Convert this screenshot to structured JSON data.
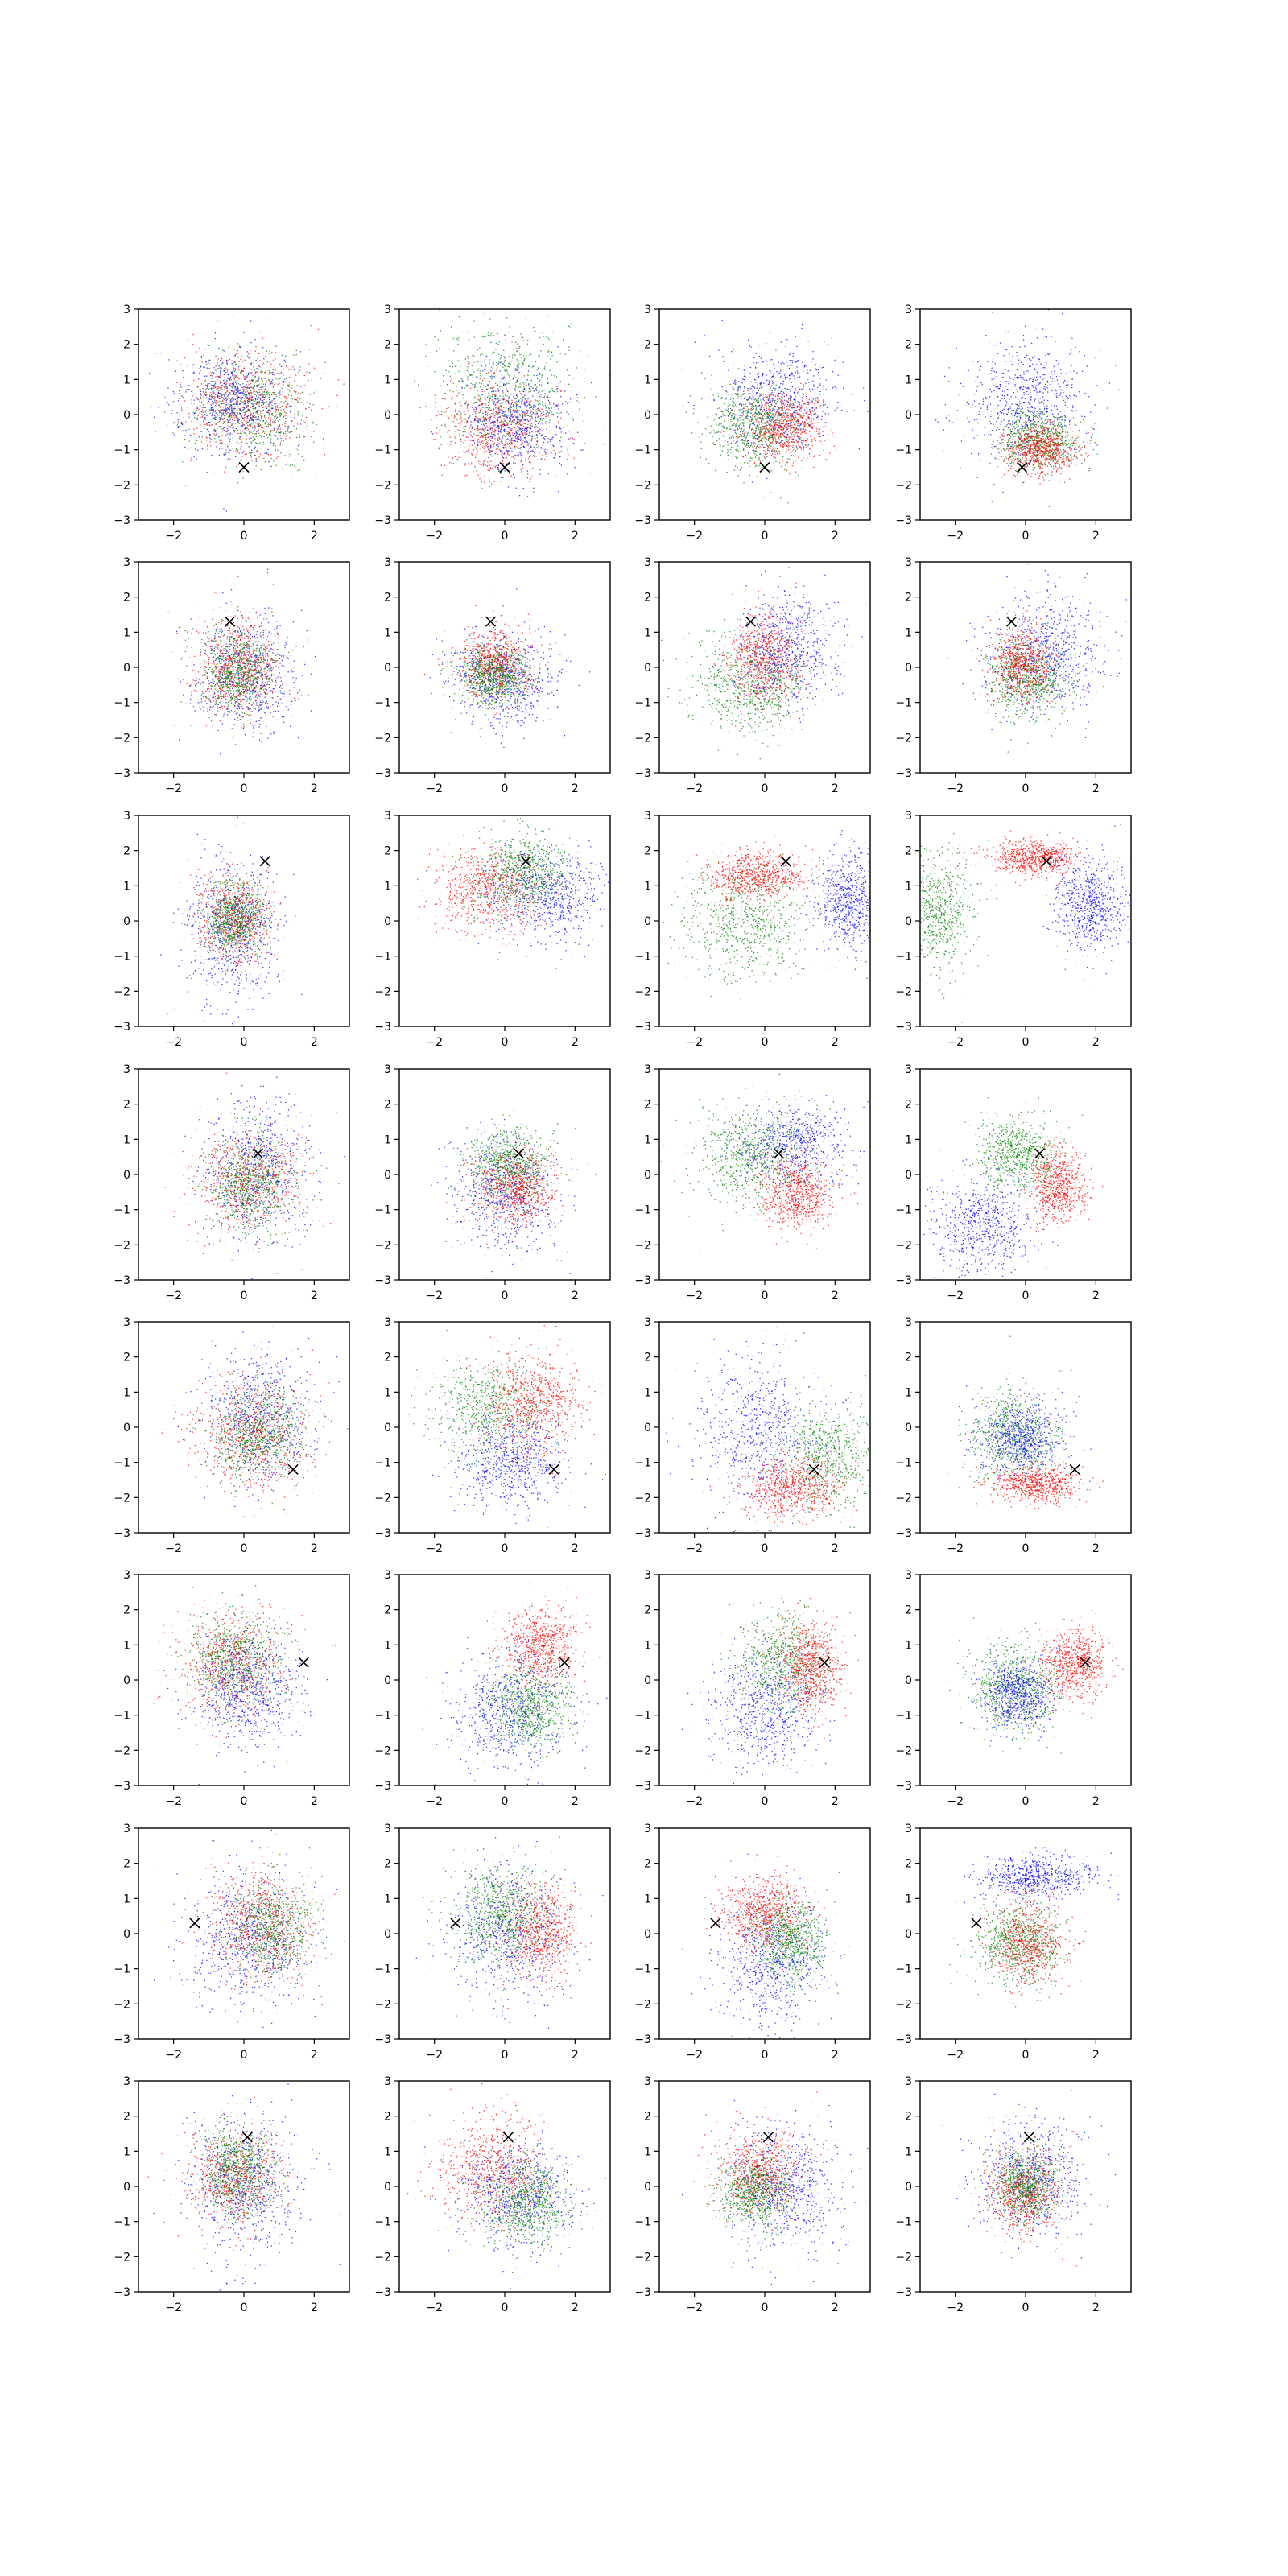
{
  "figure": {
    "rows": 8,
    "cols": 4,
    "point_colors": {
      "red": "#ff0000",
      "green": "#008000",
      "blue": "#0000ff"
    },
    "marker": {
      "symbol": "x",
      "color": "#000000"
    }
  },
  "chart_data": {
    "type": "scatter",
    "xlim": [
      -3,
      3
    ],
    "ylim": [
      -3,
      3
    ],
    "x_ticks": [
      -2,
      0,
      2
    ],
    "y_ticks": [
      -3,
      -2,
      -1,
      0,
      1,
      2,
      3
    ],
    "x_tick_labels": [
      "−2",
      "0",
      "2"
    ],
    "y_tick_labels": [
      "−3",
      "−2",
      "−1",
      "0",
      "1",
      "2",
      "3"
    ],
    "grid": false,
    "legend": "none",
    "panels": [
      {
        "row": 0,
        "col": 0,
        "marker": [
          0.0,
          -1.5
        ],
        "clusters": [
          {
            "color": "red",
            "cx": 0.0,
            "cy": 0.3,
            "sx": 1.0,
            "sy": 0.9
          },
          {
            "color": "green",
            "cx": 0.2,
            "cy": 0.2,
            "sx": 1.0,
            "sy": 0.9
          },
          {
            "color": "blue",
            "cx": -0.3,
            "cy": 0.4,
            "sx": 0.9,
            "sy": 0.9
          }
        ]
      },
      {
        "row": 0,
        "col": 1,
        "marker": [
          0.0,
          -1.5
        ],
        "clusters": [
          {
            "color": "green",
            "cx": 0.0,
            "cy": 0.8,
            "sx": 1.2,
            "sy": 1.1
          },
          {
            "color": "red",
            "cx": -0.2,
            "cy": -0.4,
            "sx": 0.9,
            "sy": 0.8
          },
          {
            "color": "blue",
            "cx": 0.3,
            "cy": -0.2,
            "sx": 0.9,
            "sy": 0.9
          }
        ]
      },
      {
        "row": 0,
        "col": 2,
        "marker": [
          0.0,
          -1.5
        ],
        "clusters": [
          {
            "color": "blue",
            "cx": 0.3,
            "cy": 0.4,
            "sx": 1.0,
            "sy": 0.9
          },
          {
            "color": "green",
            "cx": -0.3,
            "cy": -0.3,
            "sx": 0.8,
            "sy": 0.7
          },
          {
            "color": "red",
            "cx": 0.5,
            "cy": -0.3,
            "sx": 0.7,
            "sy": 0.6
          }
        ]
      },
      {
        "row": 0,
        "col": 3,
        "marker": [
          -0.1,
          -1.5
        ],
        "clusters": [
          {
            "color": "blue",
            "cx": 0.0,
            "cy": 0.4,
            "sx": 1.0,
            "sy": 1.0
          },
          {
            "color": "green",
            "cx": 0.3,
            "cy": -0.7,
            "sx": 0.7,
            "sy": 0.5
          },
          {
            "color": "red",
            "cx": 0.4,
            "cy": -1.0,
            "sx": 0.6,
            "sy": 0.4
          }
        ]
      },
      {
        "row": 1,
        "col": 0,
        "marker": [
          -0.4,
          1.3
        ],
        "clusters": [
          {
            "color": "blue",
            "cx": 0.0,
            "cy": -0.1,
            "sx": 0.9,
            "sy": 1.0
          },
          {
            "color": "red",
            "cx": -0.2,
            "cy": 0.0,
            "sx": 0.7,
            "sy": 0.8
          },
          {
            "color": "green",
            "cx": -0.2,
            "cy": -0.1,
            "sx": 0.6,
            "sy": 0.7
          }
        ]
      },
      {
        "row": 1,
        "col": 1,
        "marker": [
          -0.4,
          1.3
        ],
        "clusters": [
          {
            "color": "blue",
            "cx": 0.0,
            "cy": -0.3,
            "sx": 0.9,
            "sy": 0.8
          },
          {
            "color": "red",
            "cx": -0.3,
            "cy": 0.1,
            "sx": 0.6,
            "sy": 0.6
          },
          {
            "color": "green",
            "cx": -0.3,
            "cy": -0.2,
            "sx": 0.6,
            "sy": 0.5
          }
        ]
      },
      {
        "row": 1,
        "col": 2,
        "marker": [
          -0.4,
          1.3
        ],
        "clusters": [
          {
            "color": "blue",
            "cx": 0.6,
            "cy": 0.6,
            "sx": 0.9,
            "sy": 0.9
          },
          {
            "color": "green",
            "cx": -0.4,
            "cy": -0.5,
            "sx": 1.0,
            "sy": 0.8
          },
          {
            "color": "red",
            "cx": 0.0,
            "cy": 0.2,
            "sx": 0.6,
            "sy": 0.7
          }
        ]
      },
      {
        "row": 1,
        "col": 3,
        "marker": [
          -0.4,
          1.3
        ],
        "clusters": [
          {
            "color": "blue",
            "cx": 0.6,
            "cy": 0.4,
            "sx": 1.0,
            "sy": 1.0
          },
          {
            "color": "green",
            "cx": 0.0,
            "cy": -0.3,
            "sx": 0.7,
            "sy": 0.7
          },
          {
            "color": "red",
            "cx": -0.1,
            "cy": 0.2,
            "sx": 0.5,
            "sy": 0.6
          }
        ]
      },
      {
        "row": 2,
        "col": 0,
        "marker": [
          0.6,
          1.7
        ],
        "clusters": [
          {
            "color": "blue",
            "cx": -0.3,
            "cy": -0.3,
            "sx": 0.8,
            "sy": 1.2
          },
          {
            "color": "red",
            "cx": -0.3,
            "cy": 0.1,
            "sx": 0.6,
            "sy": 0.7
          },
          {
            "color": "green",
            "cx": -0.3,
            "cy": 0.1,
            "sx": 0.5,
            "sy": 0.6
          }
        ]
      },
      {
        "row": 2,
        "col": 1,
        "marker": [
          0.6,
          1.7
        ],
        "clusters": [
          {
            "color": "blue",
            "cx": 1.2,
            "cy": 0.7,
            "sx": 1.0,
            "sy": 0.8
          },
          {
            "color": "green",
            "cx": 0.5,
            "cy": 1.4,
            "sx": 0.8,
            "sy": 0.6
          },
          {
            "color": "red",
            "cx": -0.5,
            "cy": 0.9,
            "sx": 0.9,
            "sy": 0.7
          }
        ]
      },
      {
        "row": 2,
        "col": 2,
        "marker": [
          0.6,
          1.7
        ],
        "clusters": [
          {
            "color": "green",
            "cx": -0.6,
            "cy": 0.0,
            "sx": 1.0,
            "sy": 1.0
          },
          {
            "color": "blue",
            "cx": 2.4,
            "cy": 0.6,
            "sx": 0.6,
            "sy": 0.8
          },
          {
            "color": "red",
            "cx": -0.3,
            "cy": 1.3,
            "sx": 0.8,
            "sy": 0.4
          }
        ]
      },
      {
        "row": 2,
        "col": 3,
        "marker": [
          0.6,
          1.7
        ],
        "clusters": [
          {
            "color": "green",
            "cx": -2.5,
            "cy": 0.3,
            "sx": 0.6,
            "sy": 1.0
          },
          {
            "color": "red",
            "cx": 0.2,
            "cy": 1.8,
            "sx": 0.7,
            "sy": 0.3
          },
          {
            "color": "blue",
            "cx": 1.8,
            "cy": 0.5,
            "sx": 0.6,
            "sy": 0.8
          }
        ]
      },
      {
        "row": 3,
        "col": 0,
        "marker": [
          0.4,
          0.6
        ],
        "clusters": [
          {
            "color": "blue",
            "cx": 0.4,
            "cy": 0.2,
            "sx": 0.9,
            "sy": 1.2
          },
          {
            "color": "red",
            "cx": 0.1,
            "cy": -0.2,
            "sx": 0.9,
            "sy": 0.9
          },
          {
            "color": "green",
            "cx": 0.2,
            "cy": -0.3,
            "sx": 0.7,
            "sy": 0.8
          }
        ]
      },
      {
        "row": 3,
        "col": 1,
        "marker": [
          0.4,
          0.6
        ],
        "clusters": [
          {
            "color": "blue",
            "cx": 0.0,
            "cy": -0.5,
            "sx": 0.9,
            "sy": 1.0
          },
          {
            "color": "green",
            "cx": 0.1,
            "cy": 0.3,
            "sx": 0.7,
            "sy": 0.6
          },
          {
            "color": "red",
            "cx": 0.3,
            "cy": -0.4,
            "sx": 0.7,
            "sy": 0.6
          }
        ]
      },
      {
        "row": 3,
        "col": 2,
        "marker": [
          0.4,
          0.6
        ],
        "clusters": [
          {
            "color": "blue",
            "cx": 0.8,
            "cy": 0.9,
            "sx": 0.9,
            "sy": 0.7
          },
          {
            "color": "green",
            "cx": -0.4,
            "cy": 0.5,
            "sx": 0.9,
            "sy": 0.8
          },
          {
            "color": "red",
            "cx": 0.9,
            "cy": -0.5,
            "sx": 0.6,
            "sy": 0.6
          }
        ]
      },
      {
        "row": 3,
        "col": 3,
        "marker": [
          0.4,
          0.6
        ],
        "clusters": [
          {
            "color": "blue",
            "cx": -1.2,
            "cy": -1.5,
            "sx": 0.8,
            "sy": 0.8
          },
          {
            "color": "green",
            "cx": -0.2,
            "cy": 0.6,
            "sx": 0.7,
            "sy": 0.6
          },
          {
            "color": "red",
            "cx": 0.9,
            "cy": -0.3,
            "sx": 0.5,
            "sy": 0.6
          }
        ]
      },
      {
        "row": 4,
        "col": 0,
        "marker": [
          1.4,
          -1.2
        ],
        "clusters": [
          {
            "color": "blue",
            "cx": 0.4,
            "cy": 0.3,
            "sx": 0.9,
            "sy": 1.2
          },
          {
            "color": "red",
            "cx": 0.2,
            "cy": -0.2,
            "sx": 1.0,
            "sy": 0.9
          },
          {
            "color": "green",
            "cx": 0.4,
            "cy": -0.2,
            "sx": 0.8,
            "sy": 0.8
          }
        ]
      },
      {
        "row": 4,
        "col": 1,
        "marker": [
          1.4,
          -1.2
        ],
        "clusters": [
          {
            "color": "green",
            "cx": -0.5,
            "cy": 0.6,
            "sx": 1.0,
            "sy": 0.8
          },
          {
            "color": "red",
            "cx": 0.8,
            "cy": 0.7,
            "sx": 0.8,
            "sy": 0.8
          },
          {
            "color": "blue",
            "cx": 0.2,
            "cy": -1.0,
            "sx": 0.9,
            "sy": 0.8
          }
        ]
      },
      {
        "row": 4,
        "col": 2,
        "marker": [
          1.4,
          -1.2
        ],
        "clusters": [
          {
            "color": "blue",
            "cx": -0.2,
            "cy": 0.0,
            "sx": 1.0,
            "sy": 1.3
          },
          {
            "color": "green",
            "cx": 1.8,
            "cy": -0.8,
            "sx": 0.8,
            "sy": 0.9
          },
          {
            "color": "red",
            "cx": 0.8,
            "cy": -1.7,
            "sx": 0.8,
            "sy": 0.5
          }
        ]
      },
      {
        "row": 4,
        "col": 3,
        "marker": [
          1.4,
          -1.2
        ],
        "clusters": [
          {
            "color": "green",
            "cx": -0.4,
            "cy": -0.2,
            "sx": 0.8,
            "sy": 0.8
          },
          {
            "color": "blue",
            "cx": -0.2,
            "cy": -0.3,
            "sx": 0.7,
            "sy": 0.6
          },
          {
            "color": "red",
            "cx": 0.3,
            "cy": -1.6,
            "sx": 0.7,
            "sy": 0.3
          }
        ]
      },
      {
        "row": 5,
        "col": 0,
        "marker": [
          1.7,
          0.5
        ],
        "clusters": [
          {
            "color": "red",
            "cx": -0.4,
            "cy": 0.5,
            "sx": 0.9,
            "sy": 0.9
          },
          {
            "color": "green",
            "cx": -0.3,
            "cy": 0.6,
            "sx": 0.8,
            "sy": 0.8
          },
          {
            "color": "blue",
            "cx": 0.1,
            "cy": -0.3,
            "sx": 0.9,
            "sy": 0.9
          }
        ]
      },
      {
        "row": 5,
        "col": 1,
        "marker": [
          1.7,
          0.5
        ],
        "clusters": [
          {
            "color": "red",
            "cx": 1.0,
            "cy": 1.0,
            "sx": 0.6,
            "sy": 0.6
          },
          {
            "color": "blue",
            "cx": 0.2,
            "cy": -0.8,
            "sx": 1.0,
            "sy": 1.0
          },
          {
            "color": "green",
            "cx": 0.7,
            "cy": -0.8,
            "sx": 0.7,
            "sy": 0.7
          }
        ]
      },
      {
        "row": 5,
        "col": 2,
        "marker": [
          1.7,
          0.5
        ],
        "clusters": [
          {
            "color": "blue",
            "cx": 0.0,
            "cy": -0.9,
            "sx": 0.9,
            "sy": 1.0
          },
          {
            "color": "green",
            "cx": 0.5,
            "cy": 0.5,
            "sx": 0.8,
            "sy": 0.8
          },
          {
            "color": "red",
            "cx": 1.3,
            "cy": 0.4,
            "sx": 0.5,
            "sy": 0.7
          }
        ]
      },
      {
        "row": 5,
        "col": 3,
        "marker": [
          1.7,
          0.5
        ],
        "clusters": [
          {
            "color": "green",
            "cx": -0.3,
            "cy": -0.2,
            "sx": 0.8,
            "sy": 0.8
          },
          {
            "color": "blue",
            "cx": -0.2,
            "cy": -0.4,
            "sx": 0.6,
            "sy": 0.6
          },
          {
            "color": "red",
            "cx": 1.4,
            "cy": 0.5,
            "sx": 0.5,
            "sy": 0.6
          }
        ]
      },
      {
        "row": 6,
        "col": 0,
        "marker": [
          -1.4,
          0.3
        ],
        "clusters": [
          {
            "color": "blue",
            "cx": 0.0,
            "cy": -0.2,
            "sx": 1.0,
            "sy": 1.1
          },
          {
            "color": "red",
            "cx": 0.5,
            "cy": 0.2,
            "sx": 0.9,
            "sy": 0.9
          },
          {
            "color": "green",
            "cx": 0.8,
            "cy": 0.2,
            "sx": 0.7,
            "sy": 0.8
          }
        ]
      },
      {
        "row": 6,
        "col": 1,
        "marker": [
          -1.4,
          0.3
        ],
        "clusters": [
          {
            "color": "blue",
            "cx": 0.0,
            "cy": 0.0,
            "sx": 1.0,
            "sy": 1.1
          },
          {
            "color": "green",
            "cx": -0.1,
            "cy": 0.5,
            "sx": 0.8,
            "sy": 0.8
          },
          {
            "color": "red",
            "cx": 1.0,
            "cy": 0.0,
            "sx": 0.6,
            "sy": 0.8
          }
        ]
      },
      {
        "row": 6,
        "col": 2,
        "marker": [
          -1.4,
          0.3
        ],
        "clusters": [
          {
            "color": "blue",
            "cx": 0.2,
            "cy": -0.9,
            "sx": 0.9,
            "sy": 1.1
          },
          {
            "color": "red",
            "cx": -0.1,
            "cy": 0.6,
            "sx": 0.7,
            "sy": 0.6
          },
          {
            "color": "green",
            "cx": 0.7,
            "cy": -0.2,
            "sx": 0.6,
            "sy": 0.7
          }
        ]
      },
      {
        "row": 6,
        "col": 3,
        "marker": [
          -1.4,
          0.3
        ],
        "clusters": [
          {
            "color": "blue",
            "cx": 0.3,
            "cy": 1.6,
            "sx": 0.9,
            "sy": 0.35
          },
          {
            "color": "green",
            "cx": -0.2,
            "cy": -0.2,
            "sx": 0.7,
            "sy": 0.7
          },
          {
            "color": "red",
            "cx": 0.1,
            "cy": -0.3,
            "sx": 0.6,
            "sy": 0.7
          }
        ]
      },
      {
        "row": 7,
        "col": 0,
        "marker": [
          0.1,
          1.4
        ],
        "clusters": [
          {
            "color": "blue",
            "cx": 0.0,
            "cy": 0.0,
            "sx": 0.9,
            "sy": 1.1
          },
          {
            "color": "red",
            "cx": -0.3,
            "cy": 0.3,
            "sx": 0.8,
            "sy": 0.8
          },
          {
            "color": "green",
            "cx": -0.2,
            "cy": 0.5,
            "sx": 0.6,
            "sy": 0.8
          }
        ]
      },
      {
        "row": 7,
        "col": 1,
        "marker": [
          0.1,
          1.4
        ],
        "clusters": [
          {
            "color": "red",
            "cx": -0.4,
            "cy": 0.5,
            "sx": 0.9,
            "sy": 0.9
          },
          {
            "color": "blue",
            "cx": 0.3,
            "cy": -0.2,
            "sx": 1.0,
            "sy": 0.9
          },
          {
            "color": "green",
            "cx": 0.6,
            "cy": -0.5,
            "sx": 0.7,
            "sy": 0.7
          }
        ]
      },
      {
        "row": 7,
        "col": 2,
        "marker": [
          0.1,
          1.4
        ],
        "clusters": [
          {
            "color": "blue",
            "cx": 0.6,
            "cy": 0.0,
            "sx": 0.9,
            "sy": 1.1
          },
          {
            "color": "red",
            "cx": -0.1,
            "cy": 0.4,
            "sx": 0.7,
            "sy": 0.7
          },
          {
            "color": "green",
            "cx": -0.3,
            "cy": -0.2,
            "sx": 0.6,
            "sy": 0.6
          }
        ]
      },
      {
        "row": 7,
        "col": 3,
        "marker": [
          0.1,
          1.4
        ],
        "clusters": [
          {
            "color": "blue",
            "cx": 0.2,
            "cy": 0.3,
            "sx": 0.9,
            "sy": 0.9
          },
          {
            "color": "red",
            "cx": -0.1,
            "cy": -0.2,
            "sx": 0.6,
            "sy": 0.7
          },
          {
            "color": "green",
            "cx": 0.0,
            "cy": 0.0,
            "sx": 0.5,
            "sy": 0.6
          }
        ]
      }
    ]
  }
}
